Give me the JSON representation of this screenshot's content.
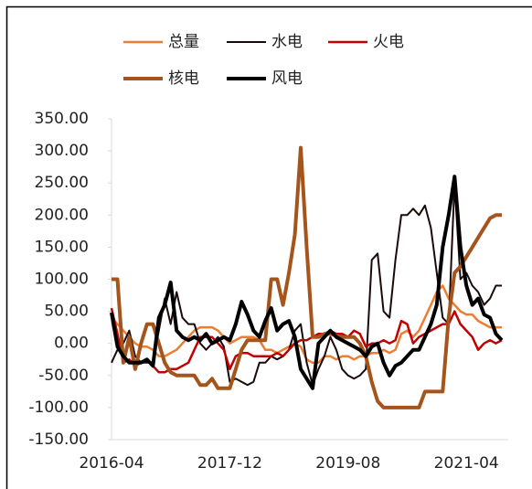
{
  "chart_data": {
    "type": "line",
    "categories": [
      "2016-04",
      null,
      null,
      null,
      null,
      null,
      null,
      null,
      null,
      null,
      null,
      null,
      null,
      null,
      null,
      null,
      null,
      null,
      null,
      null,
      "2017-12",
      null,
      null,
      null,
      null,
      null,
      null,
      null,
      null,
      null,
      null,
      null,
      null,
      null,
      null,
      null,
      null,
      null,
      null,
      null,
      "2019-08",
      null,
      null,
      null,
      null,
      null,
      null,
      null,
      null,
      null,
      null,
      null,
      null,
      null,
      null,
      null,
      null,
      null,
      null,
      null,
      "2021-04",
      null,
      null,
      null,
      null,
      null,
      null
    ],
    "series": [
      {
        "name": "总量",
        "color": "#ed7d31",
        "line_width": 2.5,
        "values": [
          40,
          30,
          20,
          10,
          0,
          -5,
          -5,
          -10,
          -20,
          -20,
          -15,
          -10,
          0,
          10,
          20,
          25,
          25,
          25,
          20,
          10,
          0,
          5,
          10,
          10,
          10,
          5,
          -10,
          -10,
          -15,
          -10,
          -5,
          0,
          -5,
          -25,
          -30,
          -30,
          -20,
          -20,
          -25,
          -20,
          -20,
          -25,
          -20,
          -20,
          -15,
          -15,
          -10,
          -15,
          -10,
          15,
          20,
          10,
          20,
          40,
          60,
          80,
          90,
          70,
          60,
          50,
          45,
          45,
          35,
          30,
          25,
          25,
          25
        ]
      },
      {
        "name": "水电",
        "color": "#1a0a0a",
        "line_width": 2,
        "values": [
          -30,
          -10,
          0,
          20,
          -20,
          -30,
          -30,
          -30,
          20,
          70,
          30,
          80,
          40,
          30,
          30,
          0,
          -10,
          0,
          10,
          -5,
          -60,
          -55,
          -60,
          -65,
          -60,
          -30,
          -30,
          -20,
          -25,
          -20,
          -10,
          20,
          30,
          -30,
          -65,
          -40,
          -20,
          10,
          -10,
          -40,
          -50,
          -55,
          -50,
          -40,
          130,
          140,
          50,
          40,
          130,
          200,
          200,
          210,
          200,
          215,
          180,
          110,
          40,
          30,
          250,
          100,
          110,
          90,
          80,
          60,
          70,
          90,
          90
        ]
      },
      {
        "name": "火电",
        "color": "#c00000",
        "line_width": 2.5,
        "values": [
          55,
          15,
          -30,
          -25,
          -35,
          -30,
          -25,
          -35,
          -45,
          -45,
          -40,
          -40,
          -35,
          -30,
          -10,
          10,
          10,
          10,
          0,
          -10,
          -40,
          -20,
          -15,
          -15,
          -20,
          -20,
          -20,
          -20,
          -15,
          -20,
          -10,
          0,
          5,
          5,
          10,
          15,
          15,
          20,
          15,
          15,
          10,
          20,
          15,
          -5,
          0,
          0,
          5,
          0,
          5,
          35,
          30,
          0,
          10,
          15,
          20,
          25,
          30,
          30,
          50,
          30,
          20,
          10,
          -10,
          0,
          5,
          0,
          5
        ]
      },
      {
        "name": "核电",
        "color": "#a5541b",
        "line_width": 4,
        "values": [
          100,
          100,
          -30,
          10,
          -40,
          0,
          30,
          30,
          0,
          -30,
          -45,
          -50,
          -50,
          -50,
          -50,
          -65,
          -65,
          -55,
          -70,
          -70,
          -70,
          -40,
          -10,
          5,
          5,
          5,
          5,
          100,
          100,
          60,
          110,
          170,
          305,
          150,
          10,
          10,
          15,
          15,
          12,
          10,
          10,
          10,
          0,
          -20,
          -60,
          -90,
          -100,
          -100,
          -100,
          -100,
          -100,
          -100,
          -100,
          -75,
          -75,
          -75,
          -75,
          40,
          110,
          120,
          135,
          150,
          165,
          180,
          195,
          200,
          200
        ]
      },
      {
        "name": "风电",
        "color": "#000000",
        "line_width": 4,
        "values": [
          48,
          -5,
          -20,
          -30,
          -30,
          -30,
          -25,
          -35,
          40,
          60,
          95,
          20,
          10,
          5,
          10,
          5,
          15,
          0,
          5,
          10,
          5,
          30,
          65,
          45,
          20,
          10,
          35,
          55,
          20,
          30,
          35,
          10,
          -40,
          -55,
          -70,
          0,
          10,
          20,
          10,
          5,
          0,
          -5,
          -10,
          -20,
          -5,
          0,
          -30,
          -50,
          -35,
          -30,
          -20,
          -10,
          -10,
          10,
          30,
          60,
          150,
          200,
          260,
          150,
          90,
          60,
          70,
          45,
          40,
          15,
          5
        ]
      }
    ],
    "ylim": [
      -150,
      350
    ],
    "yticks": [
      {
        "value": -150,
        "label": "-150.00"
      },
      {
        "value": -100,
        "label": "-100.00"
      },
      {
        "value": -50,
        "label": "-50.00"
      },
      {
        "value": 0,
        "label": "0.00"
      },
      {
        "value": 50,
        "label": "50.00"
      },
      {
        "value": 100,
        "label": "100.00"
      },
      {
        "value": 150,
        "label": "150.00"
      },
      {
        "value": 200,
        "label": "200.00"
      },
      {
        "value": 250,
        "label": "250.00"
      },
      {
        "value": 300,
        "label": "300.00"
      },
      {
        "value": 350,
        "label": "350.00"
      }
    ]
  }
}
